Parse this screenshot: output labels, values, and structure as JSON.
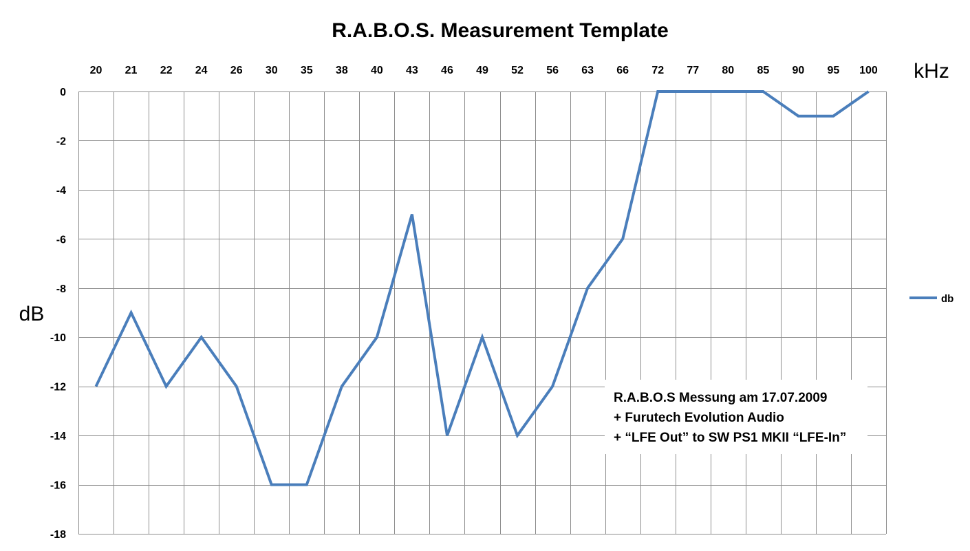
{
  "chart_data": {
    "type": "line",
    "title": "R.A.B.O.S. Measurement Template",
    "xlabel": "kHz",
    "ylabel": "dB",
    "categories": [
      "20",
      "21",
      "22",
      "24",
      "26",
      "30",
      "35",
      "38",
      "40",
      "43",
      "46",
      "49",
      "52",
      "56",
      "63",
      "66",
      "72",
      "77",
      "80",
      "85",
      "90",
      "95",
      "100"
    ],
    "series": [
      {
        "name": "db",
        "color": "#4a7ebb",
        "values": [
          -12,
          -9,
          -12,
          -10,
          -12,
          -16,
          -16,
          -12,
          -10,
          -5,
          -14,
          -10,
          -14,
          -12,
          -8,
          -6,
          0,
          0,
          0,
          0,
          -1,
          -1,
          0
        ]
      }
    ],
    "ylim": [
      -18,
      0
    ],
    "yticks": [
      0,
      -2,
      -4,
      -6,
      -8,
      -10,
      -12,
      -14,
      -16,
      -18
    ],
    "x_axis_position": "top",
    "grid": true,
    "legend": {
      "position": "right",
      "entries": [
        "db"
      ]
    },
    "annotation": {
      "lines": [
        "R.A.B.O.S Messung am 17.07.2009",
        "+ Furutech Evolution Audio",
        "+ “LFE Out” to SW PS1 MKII “LFE-In”"
      ]
    }
  }
}
